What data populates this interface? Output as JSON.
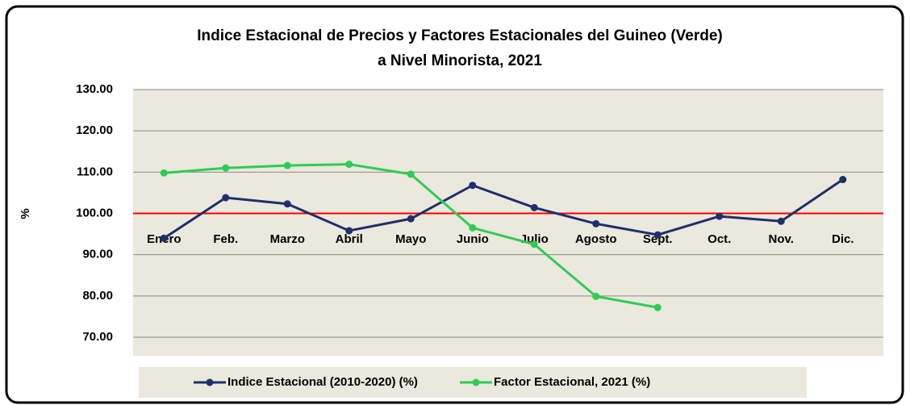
{
  "chart_data": {
    "type": "line",
    "title": "Indice Estacional de Precios y Factores Estacionales del Guineo (Verde)",
    "subtitle": "a Nivel Minorista, 2021",
    "y_label": "%",
    "categories": [
      "Enero",
      "Feb.",
      "Marzo",
      "Abril",
      "Mayo",
      "Junio",
      "Julio",
      "Agosto",
      "Sept.",
      "Oct.",
      "Nov.",
      "Dic."
    ],
    "series": [
      {
        "name": "Indice Estacional (2010-2020) (%)",
        "color": "#1f2f6b",
        "values": [
          94.0,
          103.8,
          102.3,
          95.8,
          98.7,
          106.8,
          101.4,
          97.5,
          94.8,
          99.3,
          98.1,
          108.2
        ]
      },
      {
        "name": "Factor Estacional, 2021 (%)",
        "color": "#2ecc55",
        "values": [
          109.8,
          111.0,
          111.6,
          111.9,
          109.5,
          96.5,
          92.5,
          79.9,
          77.2,
          null,
          null,
          null
        ]
      }
    ],
    "ylim": [
      70,
      130
    ],
    "yticks": [
      {
        "value": 70,
        "label": "70.00"
      },
      {
        "value": 80,
        "label": "80.00"
      },
      {
        "value": 90,
        "label": "90.00"
      },
      {
        "value": 100,
        "label": "100.00"
      },
      {
        "value": 110,
        "label": "110.00"
      },
      {
        "value": 120,
        "label": "120.00"
      },
      {
        "value": 130,
        "label": "130.00"
      }
    ],
    "grid": true,
    "reference_line": {
      "value": 100,
      "color": "#ff0000"
    },
    "legend": "bottom"
  }
}
